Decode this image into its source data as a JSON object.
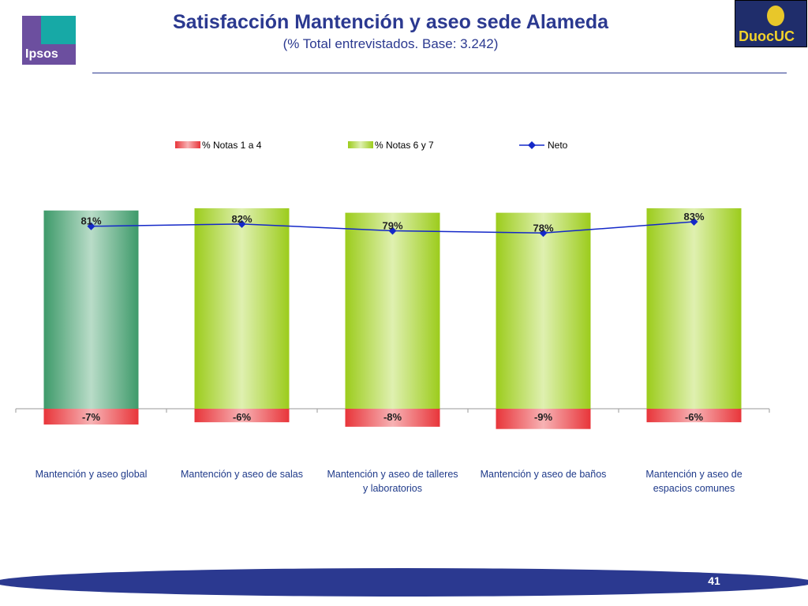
{
  "header": {
    "title": "Satisfacción Mantención y aseo sede Alameda",
    "subtitle": "(% Total entrevistados. Base: 3.242)"
  },
  "logos": {
    "ipsos": "Ipsos",
    "duoc": "DuocUC"
  },
  "footer": {
    "page_number": "41"
  },
  "colors": {
    "accent": "#2b3990",
    "negative": "#e8353a",
    "positive": "#9ccc1c",
    "global_bar": "#3e9a6a",
    "neto_line": "#1428c8"
  },
  "chart_data": {
    "type": "bar",
    "categories": [
      "Mantención y aseo global",
      "Mantención y aseo de salas",
      "Mantención y aseo de talleres y laboratorios",
      "Mantención y aseo de baños",
      "Mantención y aseo de espacios comunes"
    ],
    "category_lines": [
      [
        "Mantención y aseo global"
      ],
      [
        "Mantención y aseo de salas"
      ],
      [
        "Mantención y aseo de talleres",
        "y laboratorios"
      ],
      [
        "Mantención y aseo de baños"
      ],
      [
        "Mantención y aseo de",
        "espacios comunes"
      ]
    ],
    "series": [
      {
        "name": "% Notas 1 a 4",
        "values": [
          -7,
          -6,
          -8,
          -9,
          -6
        ],
        "labels": [
          "-7%",
          "-6%",
          "-8%",
          "-9%",
          "-6%"
        ]
      },
      {
        "name": "% Notas 6 y 7",
        "values": [
          88,
          89,
          87,
          87,
          89
        ]
      },
      {
        "name": "Neto",
        "values": [
          81,
          82,
          79,
          78,
          83
        ],
        "labels": [
          "81%",
          "82%",
          "79%",
          "78%",
          "83%"
        ]
      }
    ],
    "legend_position": "top",
    "grid": false
  }
}
